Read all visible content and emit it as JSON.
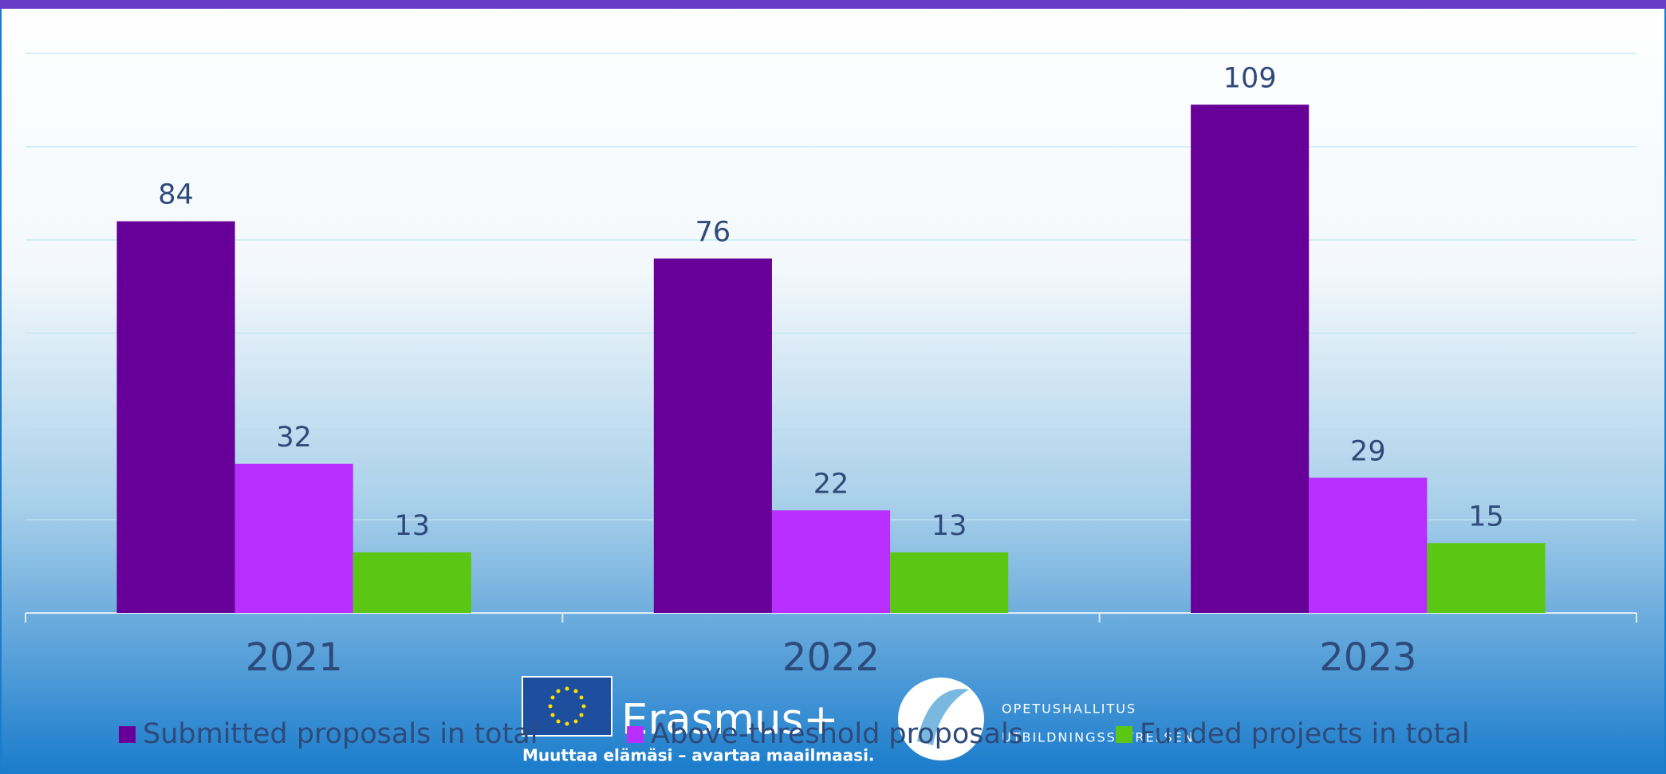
{
  "chart_data": {
    "type": "bar",
    "categories": [
      "2021",
      "2022",
      "2023"
    ],
    "series": [
      {
        "name": "Submitted proposals in total",
        "color": "#660099",
        "values": [
          84,
          76,
          109
        ]
      },
      {
        "name": "Above-threshold proposals",
        "color": "#b82eff",
        "values": [
          32,
          22,
          29
        ]
      },
      {
        "name": "Funded projects in total",
        "color": "#5bc714",
        "values": [
          13,
          13,
          15
        ]
      }
    ],
    "ylim": [
      0,
      120
    ],
    "yticks": [
      0,
      20,
      40,
      60,
      80,
      100,
      120
    ],
    "grid": true,
    "legend": "bottom"
  },
  "logos": {
    "erasmus": "Erasmus+",
    "tagline": "Muuttaa elämäsi – avartaa maailmaasi.",
    "agency": [
      "OPETUSHALLITUS",
      "UTBILDNINGSSTYRELSEN"
    ]
  }
}
